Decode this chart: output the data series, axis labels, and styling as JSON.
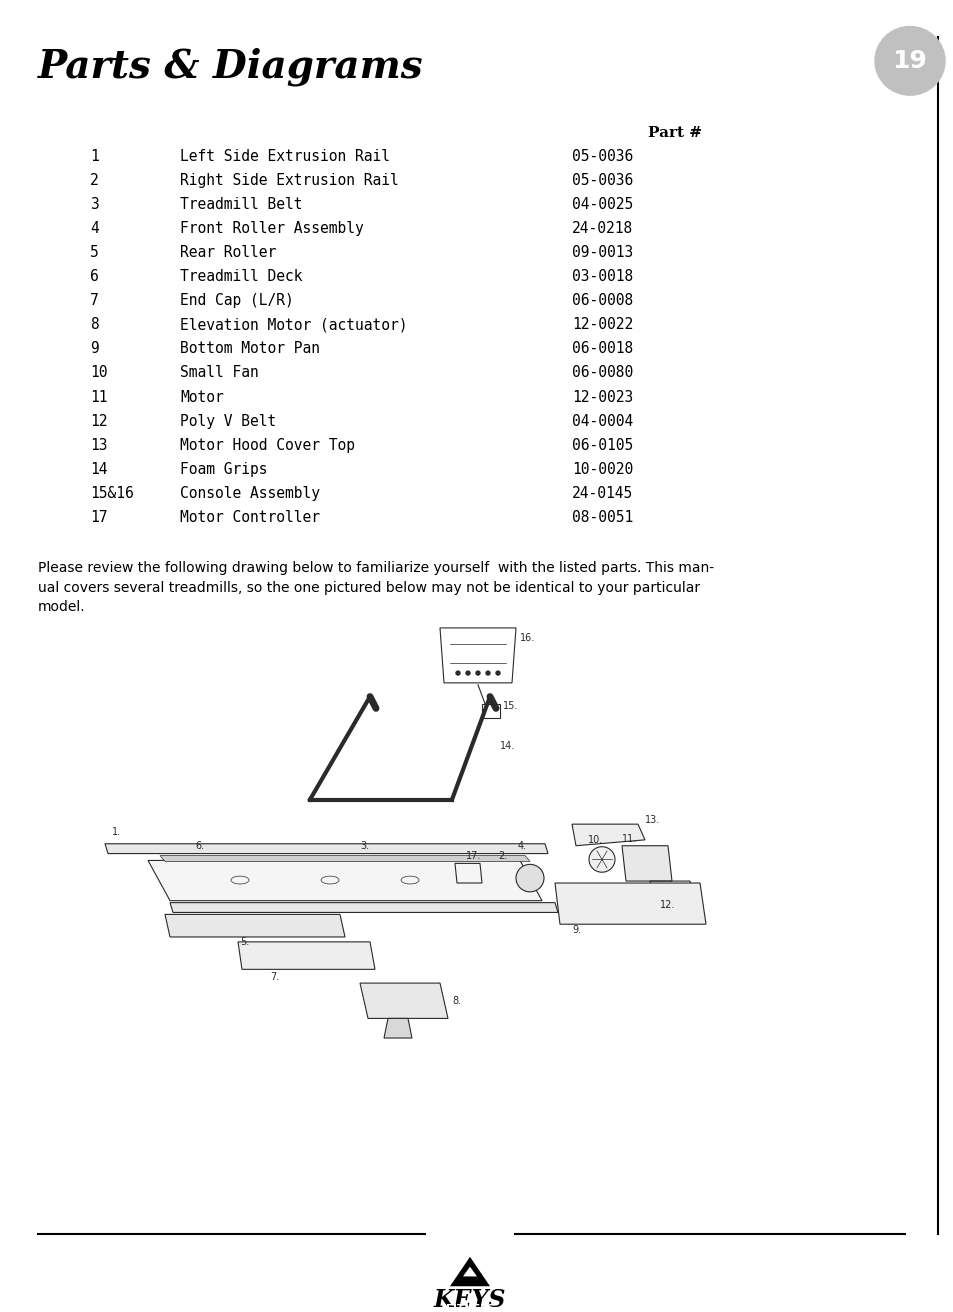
{
  "title": "Parts & Diagrams",
  "page_number": "19",
  "bg_color": "#ffffff",
  "title_color": "#000000",
  "text_color": "#000000",
  "page_badge_color": "#c0c0c0",
  "parts": [
    {
      "num": "1",
      "name": "Left Side Extrusion Rail",
      "part": "05-0036"
    },
    {
      "num": "2",
      "name": "Right Side Extrusion Rail",
      "part": "05-0036"
    },
    {
      "num": "3",
      "name": "Treadmill Belt",
      "part": "04-0025"
    },
    {
      "num": "4",
      "name": "Front Roller Assembly",
      "part": "24-0218"
    },
    {
      "num": "5",
      "name": "Rear Roller",
      "part": "09-0013"
    },
    {
      "num": "6",
      "name": "Treadmill Deck",
      "part": "03-0018"
    },
    {
      "num": "7",
      "name": "End Cap (L/R)",
      "part": "06-0008"
    },
    {
      "num": "8",
      "name": "Elevation Motor (actuator)",
      "part": "12-0022"
    },
    {
      "num": "9",
      "name": "Bottom Motor Pan",
      "part": "06-0018"
    },
    {
      "num": "10",
      "name": "Small Fan",
      "part": "06-0080"
    },
    {
      "num": "11",
      "name": "Motor",
      "part": "12-0023"
    },
    {
      "num": "12",
      "name": "Poly V Belt",
      "part": "04-0004"
    },
    {
      "num": "13",
      "name": "Motor Hood Cover Top",
      "part": "06-0105"
    },
    {
      "num": "14",
      "name": "Foam Grips",
      "part": "10-0020"
    },
    {
      "num": "15&16",
      "name": "Console Assembly",
      "part": "24-0145"
    },
    {
      "num": "17",
      "name": "Motor Controller",
      "part": "08-0051"
    }
  ],
  "part_header": "Part #",
  "paragraph_lines": [
    "Please review the following drawing below to familiarize yourself  with the listed parts. This man-",
    "ual covers several treadmills, so the one pictured below may not be identical to your particular",
    "model."
  ],
  "footer_line_color": "#000000",
  "side_line_color": "#000000",
  "logo_text_keys": "KEYS",
  "logo_text_fitness": "FITNESS"
}
